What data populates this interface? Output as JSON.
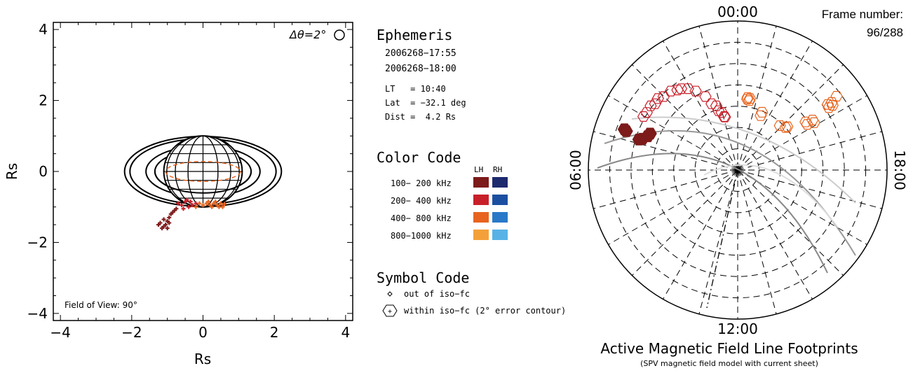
{
  "left_plot": {
    "xlabel": "Rs",
    "ylabel": "Rs",
    "xticks": [
      "−4",
      "−2",
      "0",
      "2",
      "4"
    ],
    "yticks": [
      "4",
      "2",
      "0",
      "−2",
      "−4"
    ],
    "delta_theta": "Δθ=2°",
    "fov_label": "Field of View: 90°"
  },
  "info": {
    "ephemeris_title": "Ephemeris",
    "times": [
      "2006268−17:55",
      "2006268−18:00"
    ],
    "lt": "LT   = 10:40",
    "lat": "Lat  = −32.1 deg",
    "dist": "Dist =  4.2 Rs",
    "color_code_title": "Color Code",
    "lh": "LH",
    "rh": "RH",
    "bands": [
      {
        "label": "100− 200 kHz",
        "lh": "#7d1a1a",
        "rh": "#1e2a6e"
      },
      {
        "label": "200− 400 kHz",
        "lh": "#c8202a",
        "rh": "#1c4fa0"
      },
      {
        "label": "400− 800 kHz",
        "lh": "#e8641e",
        "rh": "#2a78c8"
      },
      {
        "label": "800−1000 kHz",
        "lh": "#f4a03a",
        "rh": "#58b2e6"
      }
    ],
    "symbol_code_title": "Symbol Code",
    "symbol_out": "out of iso−fc",
    "symbol_within": "within iso−fc (2° error contour)"
  },
  "polar": {
    "label_top": "00:00",
    "label_bottom": "12:00",
    "label_left": "06:00",
    "label_right": "18:00",
    "frame_label": "Frame number:",
    "frame_value": "96/288",
    "title": "Active Magnetic Field Line Footprints",
    "subtitle": "(SPV magnetic field model with current sheet)"
  },
  "chart_data": [
    {
      "type": "scatter",
      "xlabel": "Rs",
      "ylabel": "Rs",
      "xlim": [
        -4.2,
        4.2
      ],
      "ylim": [
        -4.2,
        4.2
      ],
      "ring_radii": [
        2.2,
        2.05,
        1.6,
        1.35
      ],
      "ring_ratio": 0.32,
      "planet_radius": 1.0,
      "series": [
        {
          "color": "#7d1a1a",
          "values": [
            [
              -1.1,
              -1.55
            ],
            [
              -1.05,
              -1.5
            ],
            [
              -1.0,
              -1.4
            ],
            [
              -0.95,
              -1.3
            ],
            [
              -1.2,
              -1.45
            ],
            [
              -0.9,
              -1.2
            ],
            [
              -1.15,
              -1.6
            ],
            [
              -0.85,
              -1.15
            ],
            [
              -1.0,
              -1.6
            ],
            [
              -0.8,
              -1.1
            ],
            [
              -1.1,
              -1.35
            ],
            [
              -0.95,
              -1.45
            ],
            [
              -0.75,
              -1.05
            ],
            [
              -1.25,
              -1.5
            ]
          ]
        },
        {
          "color": "#c8202a",
          "values": [
            [
              -0.7,
              -0.9
            ],
            [
              -0.6,
              -0.95
            ],
            [
              -0.5,
              -0.85
            ],
            [
              -0.4,
              -1.0
            ],
            [
              -0.3,
              -0.95
            ],
            [
              -0.2,
              -0.9
            ],
            [
              -0.45,
              -0.8
            ],
            [
              -0.55,
              -1.05
            ],
            [
              -0.35,
              -0.85
            ]
          ]
        },
        {
          "color": "#e8641e",
          "values": [
            [
              0.0,
              -0.95
            ],
            [
              0.1,
              -0.9
            ],
            [
              0.2,
              -0.95
            ],
            [
              0.3,
              -0.9
            ],
            [
              0.4,
              -0.95
            ],
            [
              0.5,
              -0.9
            ],
            [
              0.55,
              -1.0
            ],
            [
              0.25,
              -1.0
            ],
            [
              -0.1,
              -0.9
            ],
            [
              0.35,
              -0.85
            ],
            [
              0.45,
              -1.0
            ],
            [
              0.15,
              -0.85
            ],
            [
              -0.2,
              -1.0
            ],
            [
              0.6,
              -0.92
            ]
          ]
        }
      ]
    },
    {
      "type": "polar",
      "rings": 7,
      "spokes": 24,
      "series": [
        {
          "color": "#7d1a1a",
          "center": [
            -1.1,
            -0.4
          ],
          "size": 0.18
        },
        {
          "color": "#c8202a",
          "center": [
            -0.6,
            -0.75
          ],
          "size": 0.5
        },
        {
          "color": "#e8641e",
          "center": [
            0.6,
            -0.65
          ],
          "size": 0.55
        }
      ]
    }
  ]
}
